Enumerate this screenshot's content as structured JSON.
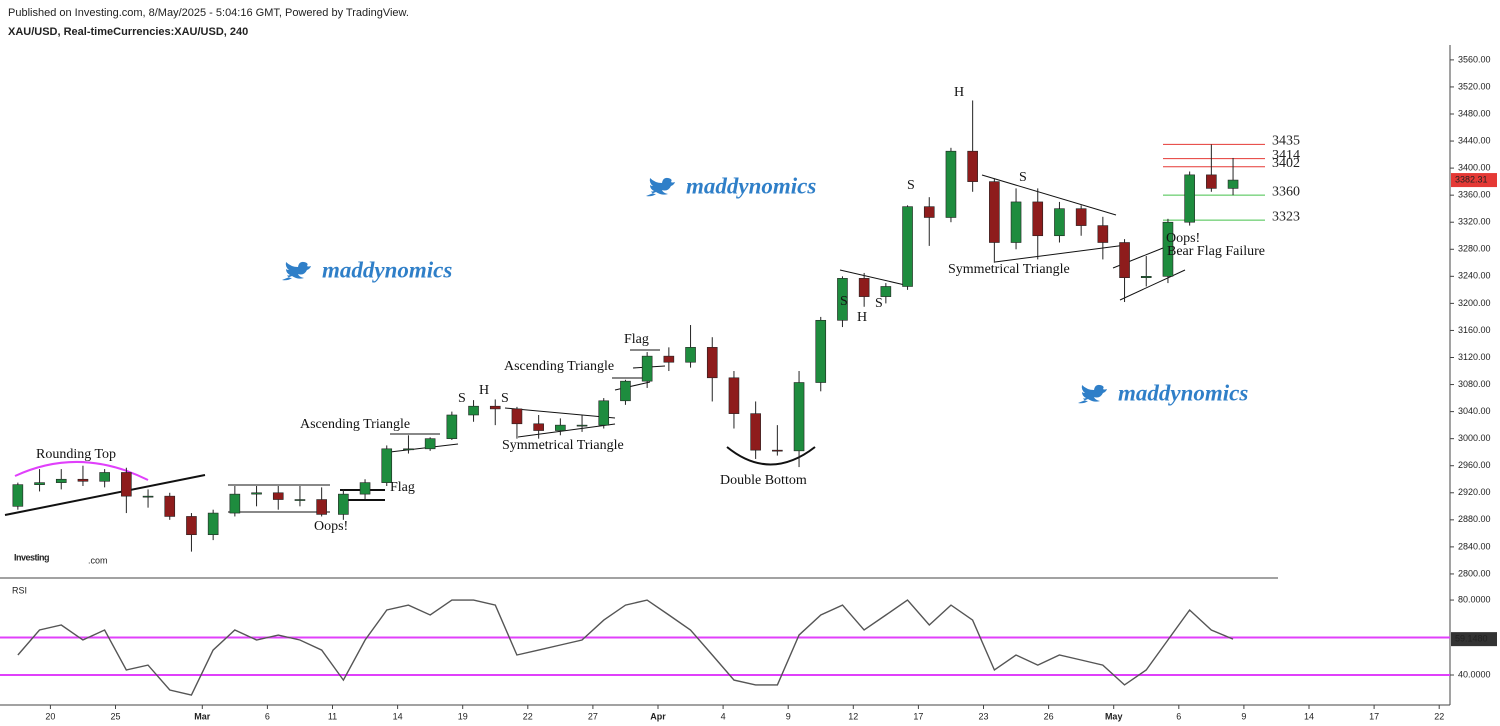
{
  "chart_data": {
    "type": "candlestick",
    "published": "Published on Investing.com, 8/May/2025 - 5:04:16 GMT, Powered by TradingView.",
    "symbol": "XAU/USD, Real-timeCurrencies:XAU/USD, 240",
    "logo": "Investing",
    "logo_suffix": ".com",
    "watermarks": [
      "maddynomics",
      "maddynomics",
      "maddynomics"
    ],
    "up_color": "#1e8c3e",
    "down_color": "#8e1c1c",
    "categories": [
      null,
      null,
      "20",
      null,
      null,
      "25",
      null,
      null,
      null,
      "Mar",
      null,
      null,
      "6",
      null,
      null,
      "11",
      null,
      null,
      "14",
      null,
      null,
      "19",
      null,
      null,
      "22",
      null,
      null,
      "27",
      null,
      null,
      "Apr",
      null,
      null,
      "4",
      null,
      null,
      "9",
      null,
      null,
      "12",
      null,
      null,
      "17",
      null,
      null,
      "23",
      null,
      null,
      "26",
      null,
      null,
      "May",
      null,
      null,
      "6",
      null,
      null,
      "9",
      null,
      null,
      "14",
      null,
      null,
      "17",
      null,
      null,
      "22"
    ],
    "open": [
      2900,
      2932,
      2935,
      2940,
      2937,
      2950,
      2915,
      2915,
      2885,
      2858,
      2890,
      2918,
      2920,
      2910,
      2910,
      2888,
      2918,
      2935,
      2985,
      2985,
      3000,
      3035,
      3048,
      3044,
      3022,
      3012,
      3020,
      3020,
      3056,
      3085,
      3122,
      3113,
      3135,
      3090,
      3037,
      2983,
      2982,
      3083,
      3175,
      3237,
      3210,
      3225,
      3343,
      3327,
      3425,
      3380,
      3290,
      3350,
      3300,
      3340,
      3315,
      3290,
      3238,
      3240,
      3320,
      3390,
      3370,
      null,
      null,
      null,
      null,
      null,
      null,
      null,
      null,
      null,
      null
    ],
    "high": [
      2935,
      2955,
      2955,
      2960,
      2955,
      2957,
      2925,
      2920,
      2890,
      2895,
      2930,
      2930,
      2930,
      2930,
      2928,
      2925,
      2940,
      2990,
      3005,
      3002,
      3040,
      3057,
      3058,
      3047,
      3035,
      3030,
      3035,
      3060,
      3087,
      3128,
      3135,
      3168,
      3150,
      3100,
      3055,
      3020,
      3100,
      3180,
      3240,
      3245,
      3230,
      3345,
      3357,
      3430,
      3500,
      3385,
      3370,
      3370,
      3350,
      3345,
      3328,
      3295,
      3270,
      3325,
      3395,
      3435,
      3415,
      null,
      null,
      null,
      null,
      null,
      null,
      null,
      null,
      null,
      null
    ],
    "low": [
      2895,
      2922,
      2925,
      2930,
      2928,
      2890,
      2898,
      2880,
      2833,
      2850,
      2885,
      2900,
      2895,
      2900,
      2885,
      2880,
      2910,
      2930,
      2978,
      2982,
      2998,
      3025,
      3020,
      3000,
      3000,
      3005,
      3010,
      3015,
      3050,
      3075,
      3100,
      3105,
      3055,
      3015,
      2970,
      2975,
      2958,
      3070,
      3165,
      3195,
      3200,
      3220,
      3285,
      3320,
      3365,
      3260,
      3280,
      3265,
      3290,
      3300,
      3265,
      3202,
      3225,
      3230,
      3315,
      3365,
      3360,
      null,
      null,
      null,
      null,
      null,
      null,
      null,
      null,
      null,
      null
    ],
    "close": [
      2932,
      2935,
      2940,
      2937,
      2950,
      2915,
      2915,
      2885,
      2858,
      2890,
      2918,
      2920,
      2910,
      2910,
      2888,
      2918,
      2935,
      2985,
      2985,
      3000,
      3035,
      3048,
      3044,
      3022,
      3012,
      3020,
      3020,
      3056,
      3085,
      3122,
      3113,
      3135,
      3090,
      3037,
      2983,
      2982,
      3083,
      3175,
      3237,
      3210,
      3225,
      3343,
      3327,
      3425,
      3380,
      3290,
      3350,
      3300,
      3340,
      3315,
      3290,
      3238,
      3240,
      3320,
      3390,
      3370,
      3382.31,
      null,
      null,
      null,
      null,
      null,
      null,
      null,
      null,
      null,
      null
    ],
    "ylim": [
      2794,
      3582
    ],
    "yticks": [
      {
        "value": 2800,
        "label": "2800.00"
      },
      {
        "value": 2840,
        "label": "2840.00"
      },
      {
        "value": 2880,
        "label": "2880.00"
      },
      {
        "value": 2920,
        "label": "2920.00"
      },
      {
        "value": 2960,
        "label": "2960.00"
      },
      {
        "value": 3000,
        "label": "3000.00"
      },
      {
        "value": 3040,
        "label": "3040.00"
      },
      {
        "value": 3080,
        "label": "3080.00"
      },
      {
        "value": 3120,
        "label": "3120.00"
      },
      {
        "value": 3160,
        "label": "3160.00"
      },
      {
        "value": 3200,
        "label": "3200.00"
      },
      {
        "value": 3240,
        "label": "3240.00"
      },
      {
        "value": 3280,
        "label": "3280.00"
      },
      {
        "value": 3320,
        "label": "3320.00"
      },
      {
        "value": 3360,
        "label": "3360.00"
      },
      {
        "value": 3400,
        "label": "3400.00"
      },
      {
        "value": 3440,
        "label": "3440.00"
      },
      {
        "value": 3480,
        "label": "3480.00"
      },
      {
        "value": 3520,
        "label": "3520.00"
      },
      {
        "value": 3560,
        "label": "3560.00"
      }
    ],
    "levels": [
      {
        "value": 3435,
        "color": "#e53935"
      },
      {
        "value": 3414,
        "color": "#e53935"
      },
      {
        "value": 3402,
        "color": "#e53935"
      },
      {
        "value": 3360,
        "color": "#43c04a"
      },
      {
        "value": 3323,
        "color": "#43c04a"
      }
    ],
    "annotations": [
      "Rounding Top",
      "Ascending Triangle",
      "S",
      "H",
      "S",
      "Ascending Triangle",
      "Flag",
      "Symmetrical Triangle",
      "Flag",
      "Oops!",
      "Double Bottom",
      "S",
      "H",
      "S",
      "S",
      "H",
      "S",
      "Symmetrical Triangle",
      "Oops!",
      "Bear Flag Failure"
    ],
    "rsi": {
      "title": "RSI",
      "color": "#555555",
      "band_color": "#e040fb",
      "bands": [
        60,
        40
      ],
      "values": [
        50.7,
        64,
        66.7,
        58.7,
        64,
        42.7,
        45.3,
        32,
        29.3,
        53.3,
        64,
        58.7,
        61.3,
        58.7,
        53.3,
        37.3,
        58.7,
        74.7,
        77.3,
        72,
        80,
        80,
        77.3,
        50.7,
        53.3,
        56,
        58.7,
        69.3,
        77.3,
        80,
        72,
        64,
        50.7,
        37.3,
        34.7,
        34.7,
        61.3,
        72,
        77.3,
        64,
        72,
        80,
        66.7,
        77.3,
        69.3,
        42.7,
        50.7,
        45.3,
        50.7,
        48,
        45.3,
        34.7,
        42.7,
        58.7,
        74.7,
        64,
        59.148,
        null,
        null,
        null,
        null,
        null,
        null,
        null,
        null,
        null,
        null
      ],
      "value_labels": [
        null,
        null,
        null,
        null,
        null,
        null,
        null,
        null,
        null,
        null,
        null,
        null,
        null,
        null,
        null,
        null,
        null,
        null,
        null,
        null,
        null,
        null,
        null,
        null,
        null,
        null,
        null,
        null,
        null,
        null,
        null,
        null,
        null,
        null,
        null,
        null,
        null,
        null,
        null,
        null,
        null,
        null,
        null,
        null,
        null,
        null,
        null,
        null,
        null,
        null,
        null,
        null,
        null,
        null,
        null,
        null,
        "59.1480",
        null,
        null,
        null,
        null,
        null,
        null,
        null,
        null,
        null,
        null
      ],
      "ylim": [
        24,
        90.7
      ],
      "yticks": [
        {
          "value": 40,
          "label": "40.0000"
        },
        {
          "value": 80,
          "label": "80.0000"
        }
      ]
    }
  }
}
